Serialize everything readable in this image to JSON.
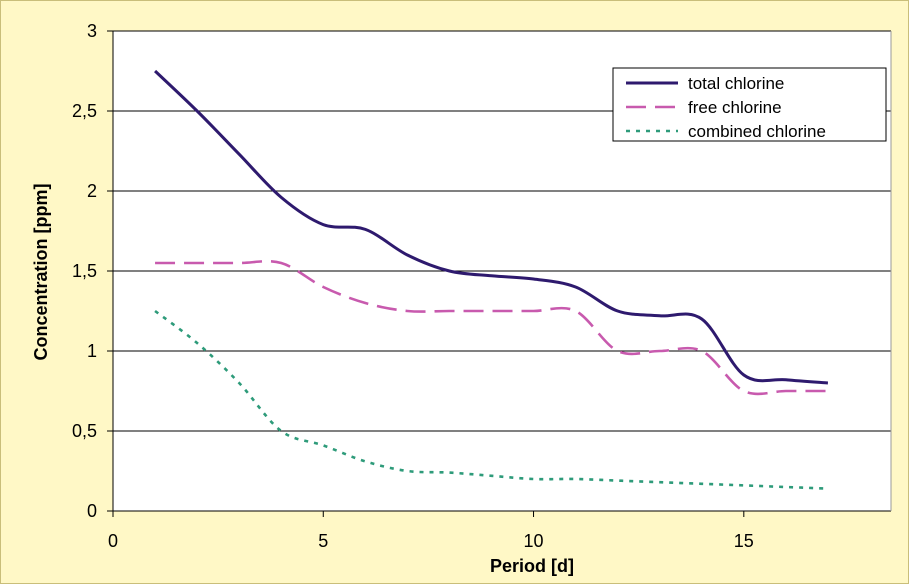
{
  "chart_data": {
    "type": "line",
    "title": "",
    "xlabel": "Period [d]",
    "ylabel": "Concentration [ppm]",
    "xlim": [
      0,
      18.5
    ],
    "ylim": [
      0,
      3
    ],
    "xticks": [
      0,
      5,
      10,
      15
    ],
    "xtick_labels": [
      "0",
      "5",
      "10",
      "15"
    ],
    "yticks": [
      0,
      0.5,
      1,
      1.5,
      2,
      2.5,
      3
    ],
    "ytick_labels": [
      "0",
      "0,5",
      "1",
      "1,5",
      "2",
      "2,5",
      "3"
    ],
    "grid": "horizontal",
    "legend_position": "top-right",
    "series": [
      {
        "name": "total chlorine",
        "color": "#2E1A6E",
        "style": "solid",
        "points": [
          [
            1,
            2.75
          ],
          [
            2,
            2.5
          ],
          [
            3,
            2.23
          ],
          [
            4,
            1.96
          ],
          [
            5,
            1.79
          ],
          [
            6,
            1.76
          ],
          [
            7,
            1.6
          ],
          [
            8,
            1.5
          ],
          [
            9,
            1.47
          ],
          [
            10,
            1.45
          ],
          [
            11,
            1.4
          ],
          [
            12,
            1.25
          ],
          [
            13,
            1.22
          ],
          [
            14,
            1.2
          ],
          [
            15,
            0.85
          ],
          [
            16,
            0.82
          ],
          [
            17,
            0.8
          ]
        ]
      },
      {
        "name": "free chlorine",
        "color": "#C85AAE",
        "style": "dashed",
        "points": [
          [
            1,
            1.55
          ],
          [
            2,
            1.55
          ],
          [
            3,
            1.55
          ],
          [
            4,
            1.55
          ],
          [
            5,
            1.4
          ],
          [
            6,
            1.3
          ],
          [
            7,
            1.25
          ],
          [
            8,
            1.25
          ],
          [
            9,
            1.25
          ],
          [
            10,
            1.25
          ],
          [
            11,
            1.25
          ],
          [
            12,
            1.0
          ],
          [
            13,
            1.0
          ],
          [
            14,
            1.0
          ],
          [
            15,
            0.75
          ],
          [
            16,
            0.75
          ],
          [
            17,
            0.75
          ]
        ]
      },
      {
        "name": "combined chlorine",
        "color": "#2E9B7A",
        "style": "dotted",
        "points": [
          [
            1,
            1.25
          ],
          [
            2,
            1.05
          ],
          [
            3,
            0.8
          ],
          [
            4,
            0.5
          ],
          [
            5,
            0.41
          ],
          [
            6,
            0.31
          ],
          [
            7,
            0.25
          ],
          [
            8,
            0.24
          ],
          [
            9,
            0.22
          ],
          [
            10,
            0.2
          ],
          [
            11,
            0.2
          ],
          [
            12,
            0.19
          ],
          [
            13,
            0.18
          ],
          [
            14,
            0.17
          ],
          [
            15,
            0.16
          ],
          [
            16,
            0.15
          ],
          [
            17,
            0.14
          ]
        ]
      }
    ]
  }
}
